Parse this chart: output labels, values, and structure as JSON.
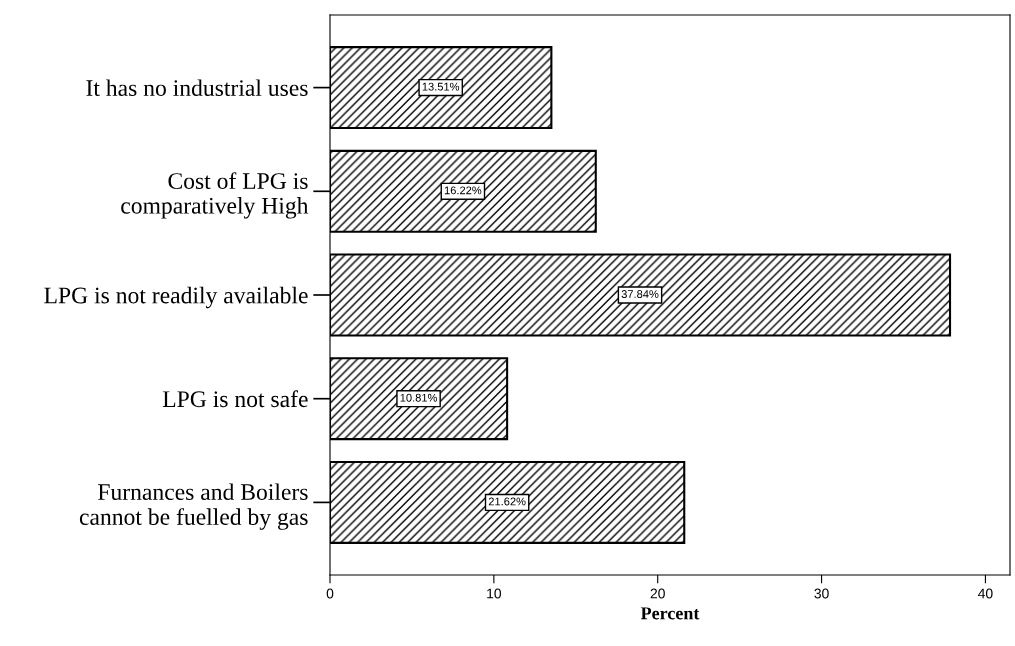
{
  "chart_data": {
    "type": "bar",
    "orientation": "horizontal",
    "xlabel": "Percent",
    "categories": [
      "It has no industrial uses",
      "Cost of LPG is\ncomparatively High",
      "LPG is not readily available",
      "LPG is not safe",
      "Furnances and Boilers\ncannot be fuelled by gas"
    ],
    "values": [
      13.51,
      16.22,
      37.84,
      10.81,
      21.62
    ],
    "value_labels": [
      "13.51%",
      "16.22%",
      "37.84%",
      "10.81%",
      "21.62%"
    ],
    "color": "#000000",
    "xlim": [
      0,
      41.5
    ],
    "xticks": [
      0,
      10,
      20,
      30,
      40
    ],
    "grid": false
  }
}
